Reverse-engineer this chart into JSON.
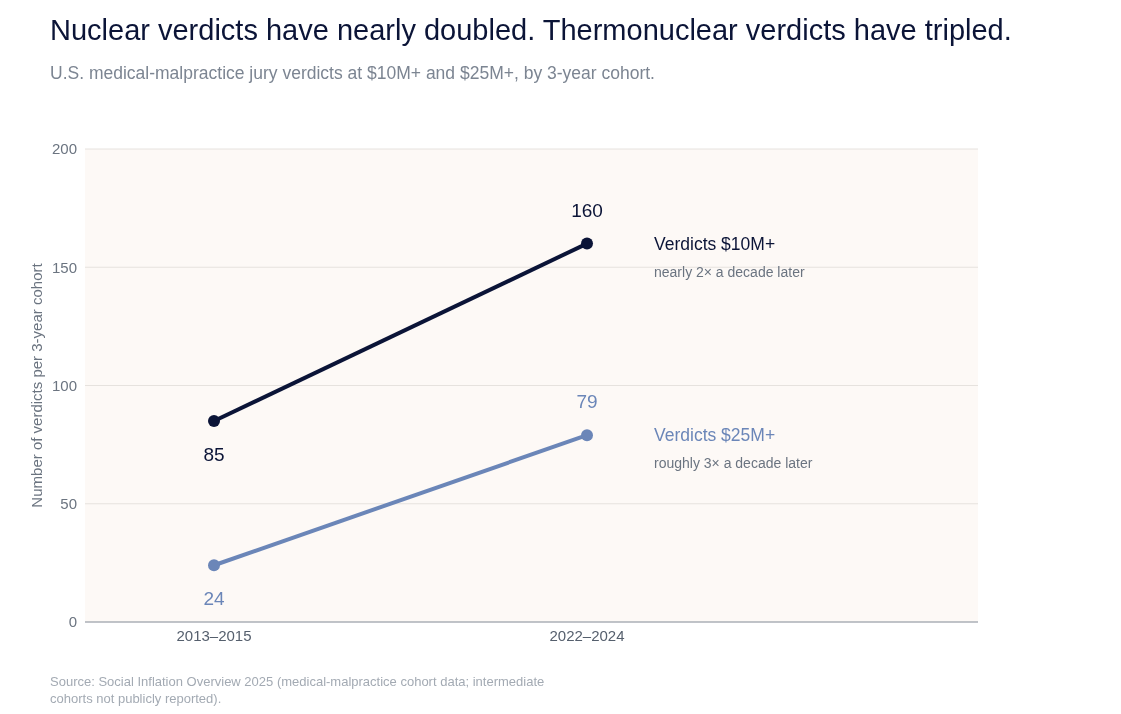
{
  "chart_data": {
    "type": "line",
    "title": "Nuclear verdicts have nearly doubled. Thermonuclear verdicts have tripled.",
    "subtitle": "U.S. medical-malpractice jury verdicts at $10M+ and $25M+, by 3-year cohort.",
    "ylabel": "Number of verdicts per 3-year cohort",
    "categories": [
      "2013–2015",
      "2022–2024"
    ],
    "series": [
      {
        "name": "Verdicts $10M+",
        "color": "#0b1437",
        "values": [
          85,
          160
        ]
      },
      {
        "name": "Verdicts $25M+",
        "color": "#6b86b8",
        "values": [
          24,
          79
        ]
      }
    ],
    "ylim": [
      0,
      200
    ],
    "yticks": [
      0,
      50,
      100,
      150,
      200
    ],
    "grid": "y",
    "marker": "circle",
    "line_style": "solid",
    "data_labels": true,
    "legend": false,
    "annotations": [
      "nearly 2× a decade later",
      "roughly 3× a decade later",
      "Source: Social Inflation Overview 2025 (medical-malpractice cohort data; intermediate cohorts not publicly reported)."
    ]
  }
}
